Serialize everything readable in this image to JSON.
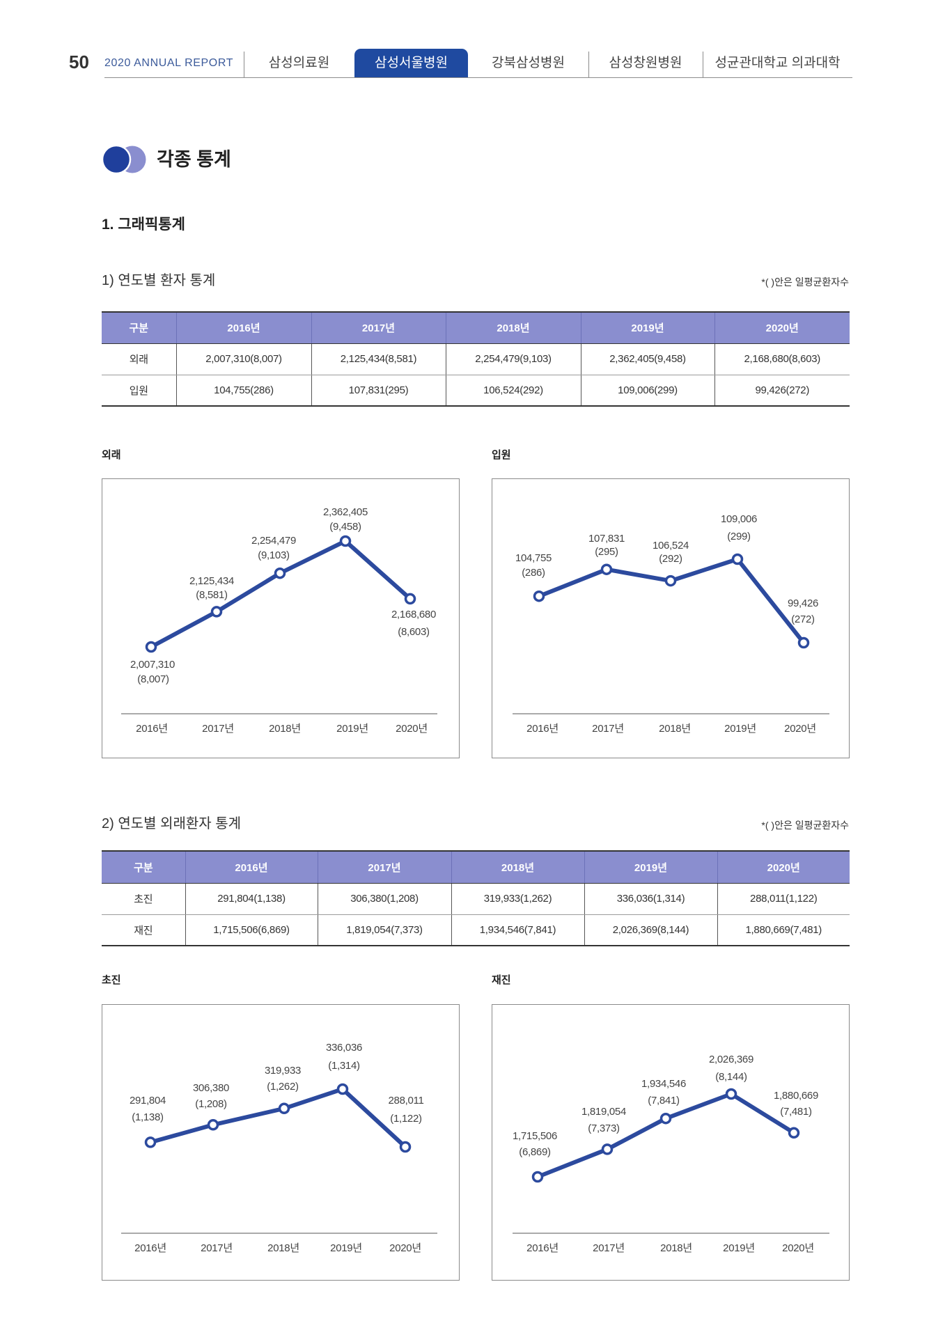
{
  "header": {
    "page_number": "50",
    "report_title": "2020 ANNUAL REPORT",
    "tabs": [
      {
        "label": "삼성의료원",
        "active": false
      },
      {
        "label": "삼성서울병원",
        "active": true
      },
      {
        "label": "강북삼성병원",
        "active": false
      },
      {
        "label": "삼성창원병원",
        "active": false
      },
      {
        "label": "성균관대학교 의과대학",
        "active": false
      }
    ]
  },
  "colors": {
    "accent": "#1f4aa0",
    "bullet_secondary": "#8a8ecf",
    "table_header": "#8a8ecf",
    "line": "#2c4a9e"
  },
  "section": {
    "title": "각종 통계",
    "subsection": "1. 그래픽통계"
  },
  "patient_stats": {
    "heading": "1) 연도별 환자 통계",
    "note": "*( )안은 일평균환자수",
    "columns": [
      "구분",
      "2016년",
      "2017년",
      "2018년",
      "2019년",
      "2020년"
    ],
    "rows": [
      [
        "외래",
        "2,007,310(8,007)",
        "2,125,434(8,581)",
        "2,254,479(9,103)",
        "2,362,405(9,458)",
        "2,168,680(8,603)"
      ],
      [
        "입원",
        "104,755(286)",
        "107,831(295)",
        "106,524(292)",
        "109,006(299)",
        "99,426(272)"
      ]
    ]
  },
  "outpatient_stats": {
    "heading": "2) 연도별 외래환자 통계",
    "note": "*( )안은 일평균환자수",
    "columns": [
      "구분",
      "2016년",
      "2017년",
      "2018년",
      "2019년",
      "2020년"
    ],
    "rows": [
      [
        "초진",
        "291,804(1,138)",
        "306,380(1,208)",
        "319,933(1,262)",
        "336,036(1,314)",
        "288,011(1,122)"
      ],
      [
        "재진",
        "1,715,506(6,869)",
        "1,819,054(7,373)",
        "1,934,546(7,841)",
        "2,026,369(8,144)",
        "1,880,669(7,481)"
      ]
    ]
  },
  "chart_data": [
    {
      "type": "line",
      "title": "외래",
      "categories": [
        "2016년",
        "2017년",
        "2018년",
        "2019년",
        "2020년"
      ],
      "series": [
        {
          "values": [
            2007310,
            2125434,
            2254479,
            2362405,
            2168680
          ]
        }
      ],
      "daily_average": [
        8007,
        8581,
        9103,
        9458,
        8603
      ],
      "grid": false,
      "legend": "none"
    },
    {
      "type": "line",
      "title": "입원",
      "categories": [
        "2016년",
        "2017년",
        "2018년",
        "2019년",
        "2020년"
      ],
      "series": [
        {
          "values": [
            104755,
            107831,
            106524,
            109006,
            99426
          ]
        }
      ],
      "daily_average": [
        286,
        295,
        292,
        299,
        272
      ],
      "grid": false,
      "legend": "none"
    },
    {
      "type": "line",
      "title": "초진",
      "categories": [
        "2016년",
        "2017년",
        "2018년",
        "2019년",
        "2020년"
      ],
      "series": [
        {
          "values": [
            291804,
            306380,
            319933,
            336036,
            288011
          ]
        }
      ],
      "daily_average": [
        1138,
        1208,
        1262,
        1314,
        1122
      ],
      "grid": false,
      "legend": "none"
    },
    {
      "type": "line",
      "title": "재진",
      "categories": [
        "2016년",
        "2017년",
        "2018년",
        "2019년",
        "2020년"
      ],
      "series": [
        {
          "values": [
            1715506,
            1819054,
            1934546,
            2026369,
            1880669
          ]
        }
      ],
      "daily_average": [
        6869,
        7373,
        7841,
        8144,
        7481
      ],
      "grid": false,
      "legend": "none"
    }
  ]
}
